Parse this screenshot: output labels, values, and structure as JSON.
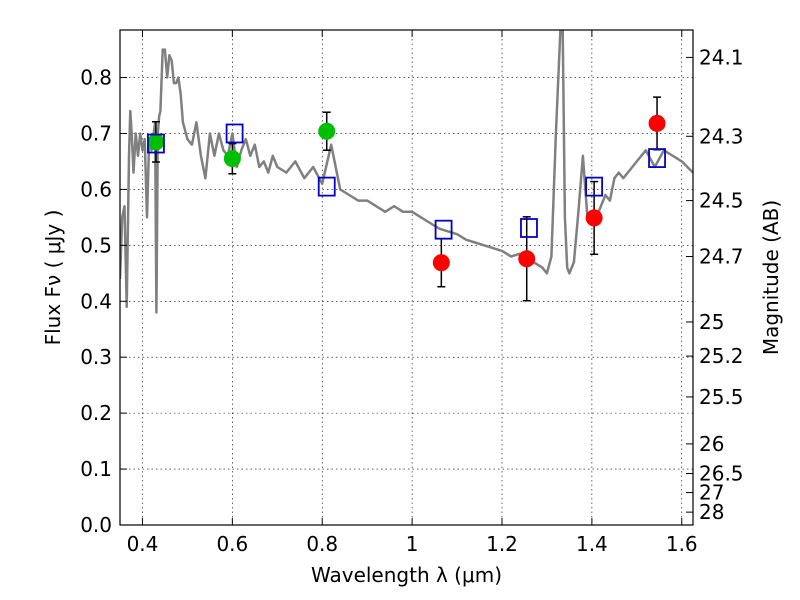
{
  "chart_data": {
    "type": "scatter",
    "xlabel": "Wavelength  λ (μm)",
    "ylabel": "Flux  Fν  ( μJy )",
    "y2label": "Magnitude (AB)",
    "xlim": [
      0.35,
      1.625
    ],
    "ylim": [
      0.0,
      0.885
    ],
    "grid": true,
    "x_ticks": [
      0.4,
      0.6,
      0.8,
      1.0,
      1.2,
      1.4,
      1.6
    ],
    "x_tick_labels": [
      "0.4",
      "0.6",
      "0.8",
      "1",
      "1.2",
      "1.4",
      "1.6"
    ],
    "y_ticks": [
      0.0,
      0.1,
      0.2,
      0.3,
      0.4,
      0.5,
      0.6,
      0.7,
      0.8
    ],
    "y_tick_labels": [
      "0.0",
      "0.1",
      "0.2",
      "0.3",
      "0.4",
      "0.5",
      "0.6",
      "0.7",
      "0.8"
    ],
    "y2_ticks": [
      {
        "flux": 0.836,
        "label": "24.1"
      },
      {
        "flux": 0.695,
        "label": "24.3"
      },
      {
        "flux": 0.58,
        "label": "24.5"
      },
      {
        "flux": 0.48,
        "label": "24.7"
      },
      {
        "flux": 0.363,
        "label": "25"
      },
      {
        "flux": 0.302,
        "label": "25.2"
      },
      {
        "flux": 0.229,
        "label": "25.5"
      },
      {
        "flux": 0.145,
        "label": "26"
      },
      {
        "flux": 0.092,
        "label": "26.5"
      },
      {
        "flux": 0.058,
        "label": "27"
      },
      {
        "flux": 0.023,
        "label": "28"
      }
    ],
    "series": [
      {
        "kind": "line",
        "color": "#808080",
        "x": [
          0.35,
          0.355,
          0.36,
          0.365,
          0.37,
          0.373,
          0.376,
          0.38,
          0.385,
          0.39,
          0.395,
          0.4,
          0.405,
          0.41,
          0.415,
          0.42,
          0.425,
          0.428,
          0.431,
          0.434,
          0.437,
          0.44,
          0.445,
          0.45,
          0.455,
          0.46,
          0.465,
          0.47,
          0.475,
          0.48,
          0.485,
          0.49,
          0.5,
          0.51,
          0.52,
          0.53,
          0.54,
          0.55,
          0.56,
          0.57,
          0.58,
          0.59,
          0.6,
          0.61,
          0.62,
          0.63,
          0.64,
          0.65,
          0.66,
          0.67,
          0.68,
          0.69,
          0.7,
          0.72,
          0.74,
          0.76,
          0.78,
          0.8,
          0.82,
          0.84,
          0.86,
          0.88,
          0.9,
          0.92,
          0.94,
          0.96,
          0.98,
          1.0,
          1.02,
          1.04,
          1.06,
          1.08,
          1.1,
          1.12,
          1.14,
          1.16,
          1.18,
          1.2,
          1.22,
          1.24,
          1.26,
          1.27,
          1.28,
          1.29,
          1.3,
          1.31,
          1.32,
          1.33,
          1.335,
          1.34,
          1.345,
          1.35,
          1.36,
          1.37,
          1.38,
          1.39,
          1.4,
          1.41,
          1.42,
          1.43,
          1.44,
          1.45,
          1.46,
          1.47,
          1.48,
          1.49,
          1.5,
          1.52,
          1.54,
          1.56,
          1.58,
          1.6,
          1.625
        ],
        "y": [
          0.44,
          0.55,
          0.57,
          0.39,
          0.66,
          0.74,
          0.7,
          0.63,
          0.7,
          0.66,
          0.7,
          0.67,
          0.69,
          0.55,
          0.69,
          0.67,
          0.7,
          0.72,
          0.38,
          0.7,
          0.73,
          0.74,
          0.85,
          0.85,
          0.8,
          0.84,
          0.83,
          0.79,
          0.79,
          0.8,
          0.77,
          0.72,
          0.69,
          0.68,
          0.72,
          0.66,
          0.62,
          0.7,
          0.66,
          0.7,
          0.67,
          0.66,
          0.7,
          0.64,
          0.67,
          0.69,
          0.66,
          0.68,
          0.64,
          0.65,
          0.63,
          0.66,
          0.64,
          0.63,
          0.65,
          0.62,
          0.64,
          0.61,
          0.68,
          0.6,
          0.59,
          0.58,
          0.58,
          0.57,
          0.56,
          0.57,
          0.56,
          0.56,
          0.55,
          0.54,
          0.53,
          0.525,
          0.52,
          0.51,
          0.505,
          0.5,
          0.495,
          0.49,
          0.48,
          0.485,
          0.47,
          0.47,
          0.465,
          0.46,
          0.45,
          0.48,
          0.7,
          0.885,
          0.885,
          0.55,
          0.46,
          0.45,
          0.47,
          0.56,
          0.66,
          0.55,
          0.56,
          0.55,
          0.57,
          0.59,
          0.58,
          0.62,
          0.63,
          0.62,
          0.63,
          0.64,
          0.65,
          0.67,
          0.64,
          0.67,
          0.66,
          0.65,
          0.63
        ]
      },
      {
        "kind": "points",
        "marker": "circle",
        "color": "#00bf00",
        "x": [
          0.43,
          0.6,
          0.81
        ],
        "y": [
          0.685,
          0.655,
          0.704
        ],
        "yerr": [
          0.036,
          0.027,
          0.034
        ]
      },
      {
        "kind": "points",
        "marker": "circle",
        "color": "#ff0000",
        "x": [
          1.065,
          1.255,
          1.405,
          1.545
        ],
        "y": [
          0.469,
          0.476,
          0.549,
          0.718
        ],
        "yerr": [
          0.043,
          0.075,
          0.065,
          0.047
        ]
      },
      {
        "kind": "points",
        "marker": "square-open",
        "color": "#0000cc",
        "x": [
          0.43,
          0.605,
          0.81,
          1.07,
          1.26,
          1.405,
          1.545
        ],
        "y": [
          0.682,
          0.7,
          0.605,
          0.528,
          0.531,
          0.605,
          0.656
        ]
      }
    ]
  }
}
